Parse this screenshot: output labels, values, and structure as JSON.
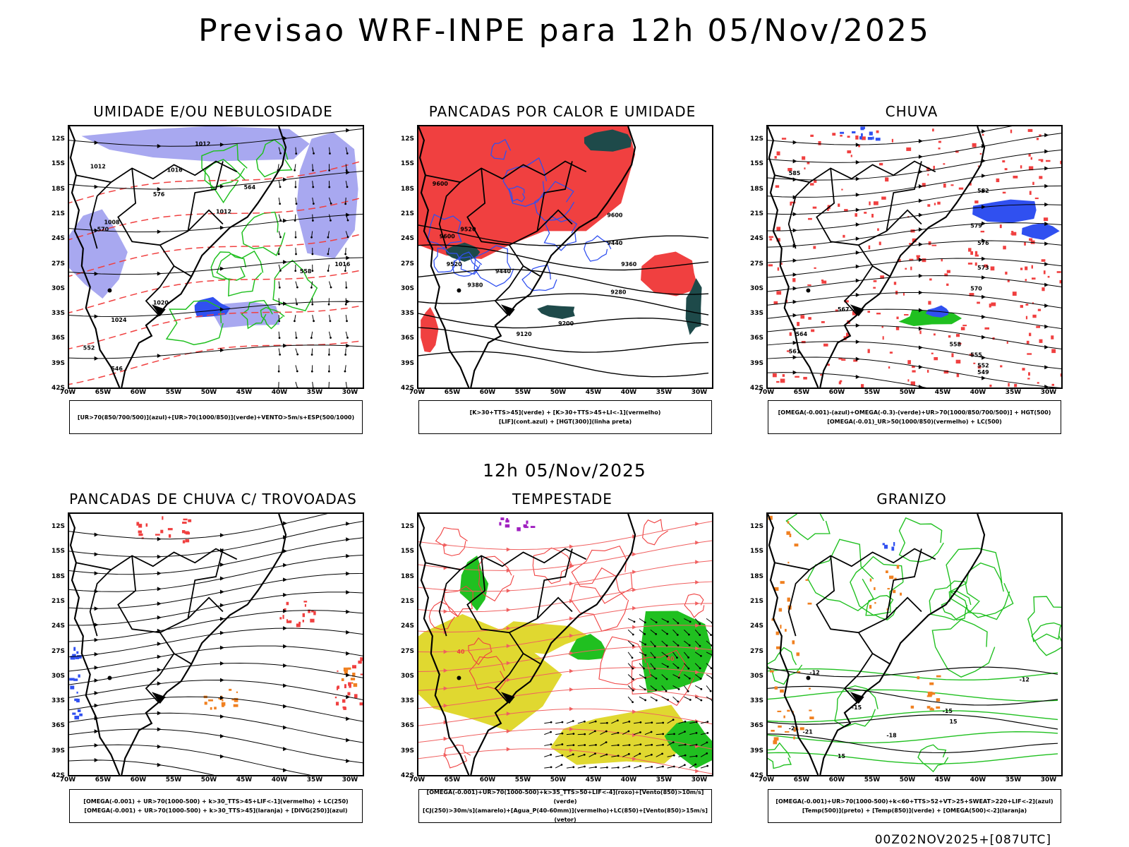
{
  "header": {
    "title": "Previsao WRF-INPE  para 12h 05/Nov/2025",
    "subtitle": "12h 05/Nov/2025",
    "footer": "00Z02NOV2025+[087UTC]"
  },
  "axes": {
    "lat_labels": [
      "12S",
      "15S",
      "18S",
      "21S",
      "24S",
      "27S",
      "30S",
      "33S",
      "36S",
      "39S",
      "42S"
    ],
    "lon_labels": [
      "70W",
      "65W",
      "60W",
      "55W",
      "50W",
      "45W",
      "40W",
      "35W",
      "30W"
    ]
  },
  "colors": {
    "red": "#f04040",
    "blue": "#3050f0",
    "green": "#20c020",
    "lavender": "#a8a8f0",
    "yellow": "#e0d830",
    "orange": "#f08020",
    "darkteal": "#1e4a4a",
    "purple": "#a020c0"
  },
  "panels": [
    {
      "id": "umidade",
      "title": "UMIDADE E/OU NEBULOSIDADE",
      "legend": [
        "[UR>70(850/700/500)](azul)+[UR>70(1000/850)](verde)+VENTO>5m/s+ESP(500/1000)"
      ],
      "contour_labels": [
        "1012",
        "1012",
        "1016",
        "1008",
        "1012",
        "1016",
        "1020",
        "1024",
        "576",
        "570",
        "564",
        "558",
        "552",
        "546"
      ]
    },
    {
      "id": "pancadas-calor",
      "title": "PANCADAS POR CALOR E UMIDADE",
      "legend": [
        "[K>30+TTS>45](verde) + [K>30+TTS>45+LI<-1](vermelho)",
        "[LIF](cont.azul) + [HGT(300)](linha preta)"
      ],
      "contour_labels": [
        "9600",
        "9520",
        "9440",
        "9360",
        "9280",
        "9200",
        "9120",
        "9380",
        "9440",
        "9520",
        "9600",
        "9600"
      ]
    },
    {
      "id": "chuva",
      "title": "CHUVA",
      "legend": [
        "[OMEGA(-0.001)-(azul)+OMEGA(-0.3)-(verde)+UR>70(1000/850/700/500)] + HGT(500)",
        "[OMEGA(-0.01)_UR>50(1000/850)(vermelho) + LC(500)"
      ],
      "contour_labels": [
        "585",
        "582",
        "579",
        "576",
        "573",
        "570",
        "567",
        "564",
        "561",
        "558",
        "555",
        "552",
        "549"
      ]
    },
    {
      "id": "pancadas-trovoadas",
      "title": "PANCADAS DE CHUVA C/ TROVOADAS",
      "legend": [
        "[OMEGA(-0.001) + UR>70(1000-500) + k>30_TTS>45+LIF<-1](vermelho) + LC(250)",
        "[OMEGA(-0.001) + UR>70(1000-500) + k>30_TTS>45](laranja) + [DIVG(250)](azul)"
      ],
      "contour_labels": []
    },
    {
      "id": "tempestade",
      "title": "TEMPESTADE",
      "legend": [
        "[OMEGA(-0.001)+UR>70(1000-500)+k>35_TTS>50+LIF<-4](roxo)+[Vento(850)>10m/s](verde)",
        "[CJ(250)>30m/s](amarelo)+[Agua_P(40-60mm)](vermelho)+LC(850)+[Vento(850)>15m/s](vetor)"
      ],
      "contour_labels": [
        "40",
        "40"
      ]
    },
    {
      "id": "granizo",
      "title": "GRANIZO",
      "legend": [
        "[OMEGA(-0.001)+UR>70(1000-500)+k<60+TTS>52+VT>25+SWEAT>220+LIF<-2](azul)",
        "[Temp(500)](preto) + [Temp(850)](verde) + [OMEGA(500)<-2](laranja)"
      ],
      "contour_labels": [
        "-12",
        "-12",
        "-15",
        "-15",
        "-18",
        "-21",
        "-21",
        "15",
        "15"
      ]
    }
  ]
}
